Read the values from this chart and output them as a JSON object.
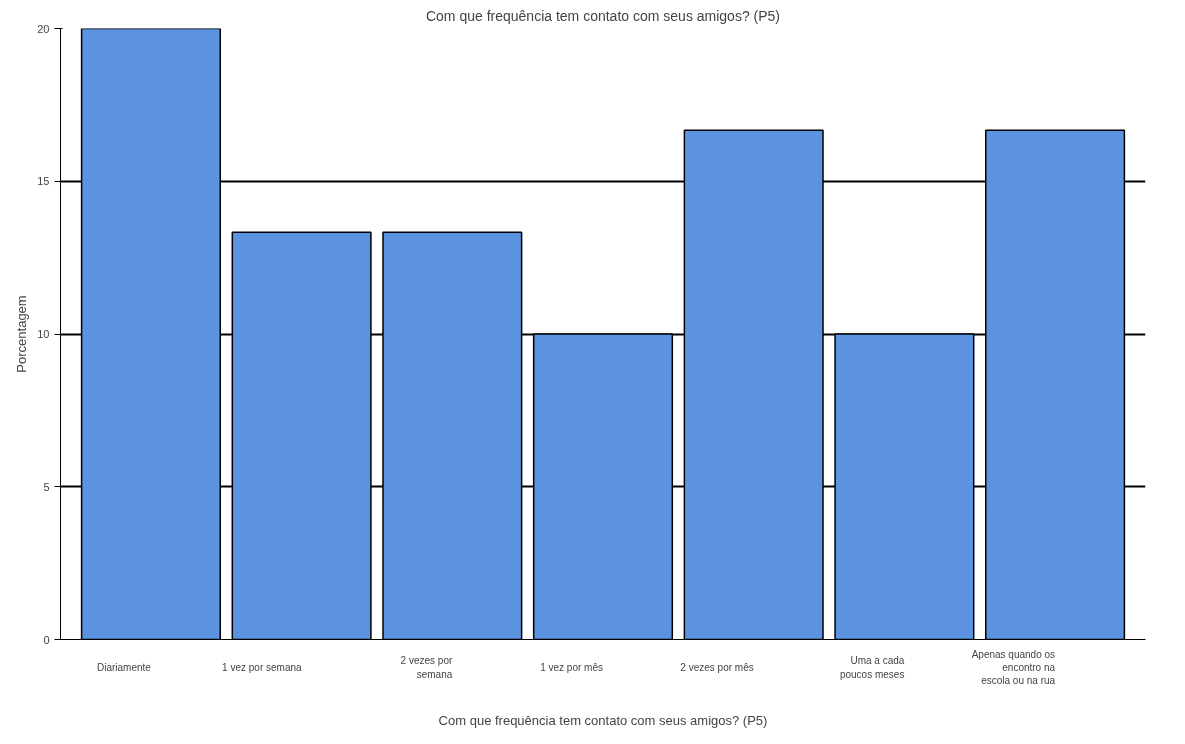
{
  "chart_data": {
    "type": "bar",
    "title": "Com que frequência tem contato com seus amigos? (P5)",
    "xlabel": "Com que frequência tem contato com seus amigos? (P5)",
    "ylabel": "Porcentagem",
    "categories": [
      "Diariamente",
      "1 vez por semana",
      "2 vezes por semana",
      "1 vez por mês",
      "2 vezes por mês",
      "Uma a cada poucos meses",
      "Apenas quando os encontro na escola ou na rua"
    ],
    "values": [
      20,
      13.33,
      13.33,
      10,
      16.67,
      10,
      16.67
    ],
    "color": "#5b93e0",
    "ylim": [
      0,
      20
    ],
    "yticks": [
      0,
      5,
      10,
      15,
      20
    ],
    "grid": "y"
  }
}
